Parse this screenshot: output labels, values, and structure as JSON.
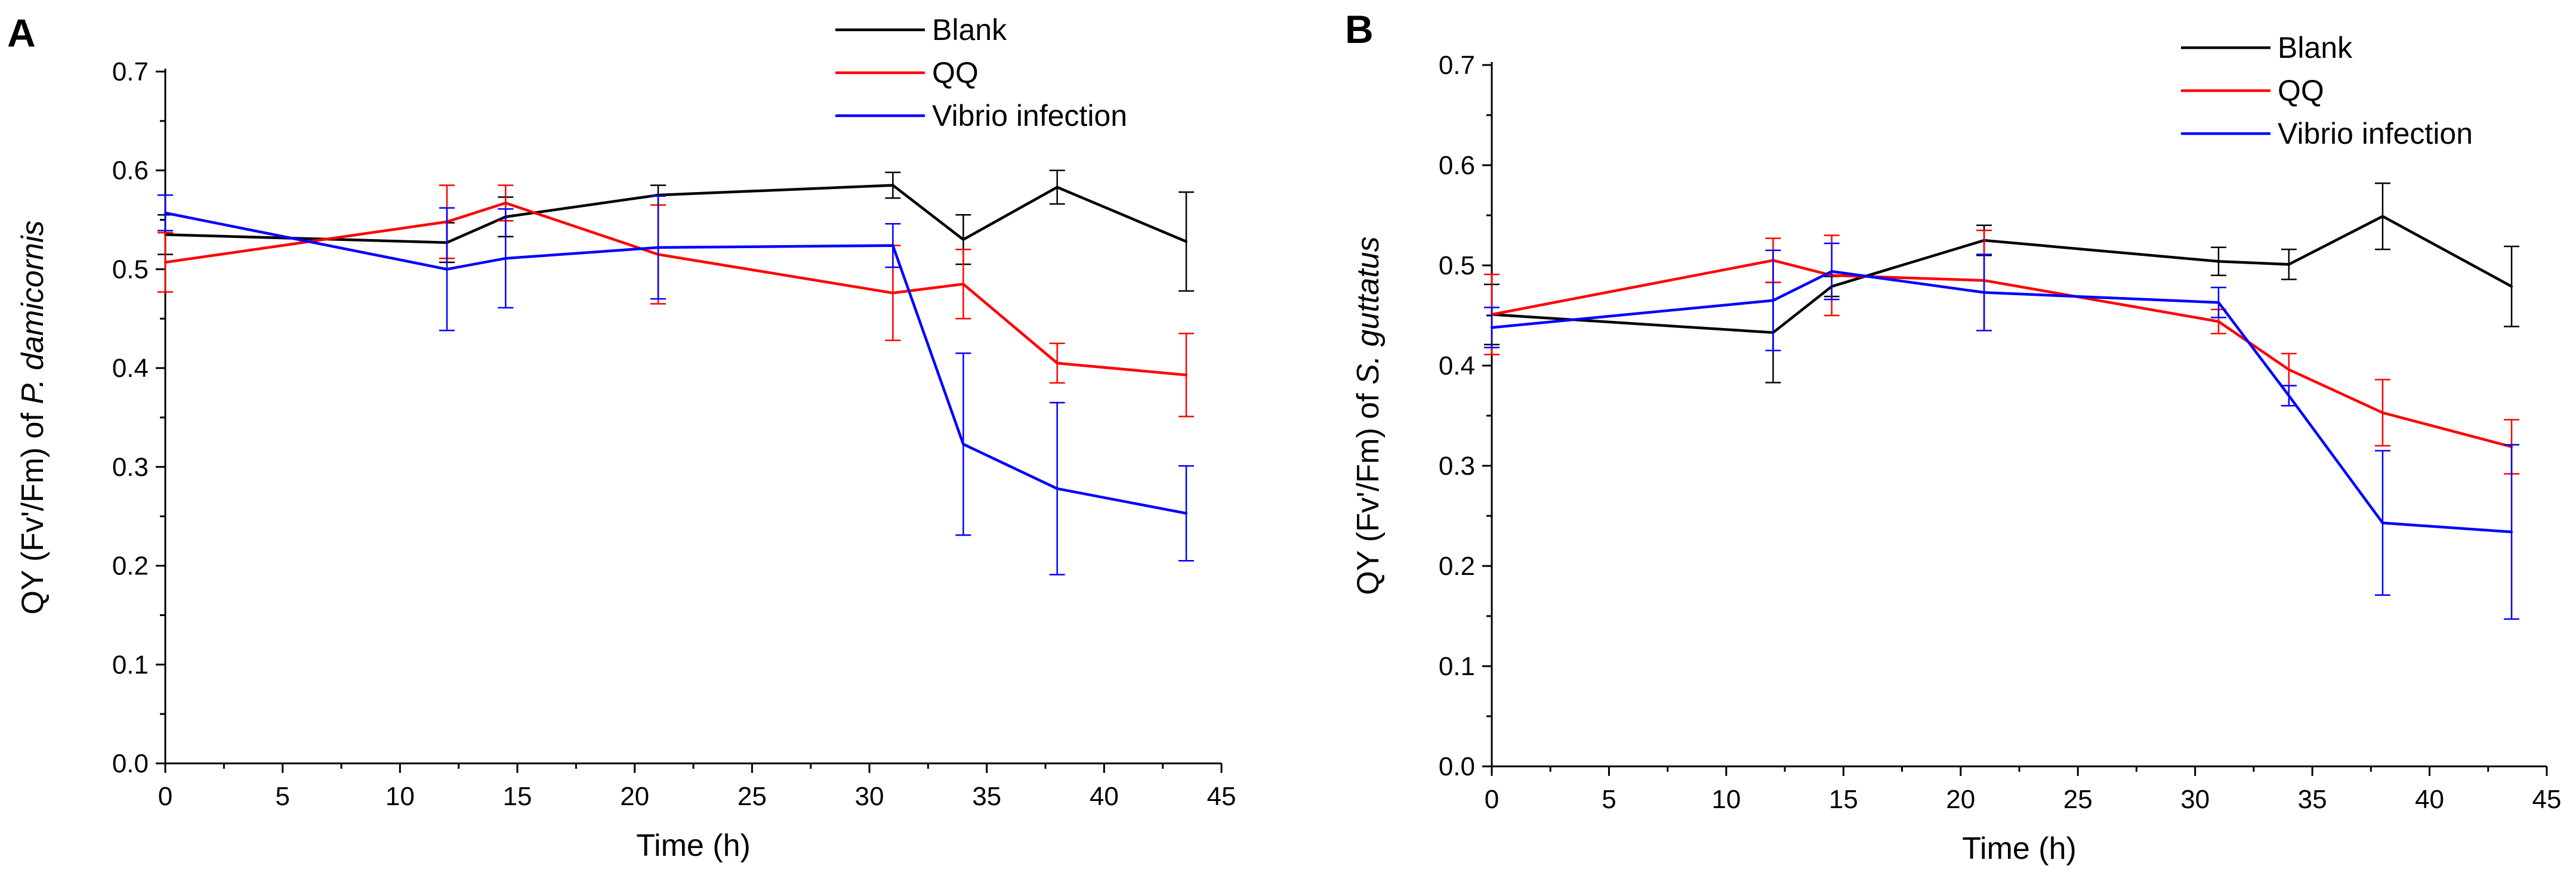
{
  "chart_data": [
    {
      "panel": "A",
      "type": "line",
      "xlabel": "Time (h)",
      "ylabel": {
        "prefix": "QY (Fv'/Fm) of ",
        "species": "P. damicornis"
      },
      "xlim": [
        0,
        45
      ],
      "ylim": [
        0,
        0.7
      ],
      "xticks": [
        0,
        5,
        10,
        15,
        20,
        25,
        30,
        35,
        40,
        45
      ],
      "yticks": [
        "0.0",
        "0.1",
        "0.2",
        "0.3",
        "0.4",
        "0.5",
        "0.6",
        "0.7"
      ],
      "legend_position": "top-right",
      "series": [
        {
          "name": "Blank",
          "color": "#000000",
          "x": [
            0,
            12,
            14.5,
            21,
            31,
            34,
            38,
            43.5
          ],
          "y": [
            0.535,
            0.527,
            0.553,
            0.575,
            0.585,
            0.53,
            0.583,
            0.528
          ],
          "err": [
            0.02,
            0.02,
            0.02,
            0.01,
            0.013,
            0.025,
            0.017,
            0.05
          ]
        },
        {
          "name": "QQ",
          "color": "#ff0000",
          "x": [
            0,
            12,
            14.5,
            21,
            31,
            34,
            38,
            43.5
          ],
          "y": [
            0.507,
            0.548,
            0.567,
            0.515,
            0.476,
            0.485,
            0.405,
            0.393
          ],
          "err": [
            0.03,
            0.037,
            0.018,
            0.05,
            0.048,
            0.035,
            0.02,
            0.042
          ]
        },
        {
          "name": "Vibrio infection",
          "color": "#0000ff",
          "x": [
            0,
            12,
            14.5,
            21,
            31,
            34,
            38,
            43.5
          ],
          "y": [
            0.557,
            0.5,
            0.511,
            0.522,
            0.524,
            0.323,
            0.278,
            0.253
          ],
          "err": [
            0.018,
            0.062,
            0.05,
            0.052,
            0.022,
            0.092,
            0.087,
            0.048
          ]
        }
      ]
    },
    {
      "panel": "B",
      "type": "line",
      "xlabel": "Time (h)",
      "ylabel": {
        "prefix": "QY (Fv'/Fm) of ",
        "species": "S. guttatus"
      },
      "xlim": [
        0,
        45
      ],
      "ylim": [
        0,
        0.7
      ],
      "xticks": [
        0,
        5,
        10,
        15,
        20,
        25,
        30,
        35,
        40,
        45
      ],
      "yticks": [
        "0.0",
        "0.1",
        "0.2",
        "0.3",
        "0.4",
        "0.5",
        "0.6",
        "0.7"
      ],
      "legend_position": "top-right",
      "series": [
        {
          "name": "Blank",
          "color": "#000000",
          "x": [
            0,
            12,
            14.5,
            21,
            31,
            34,
            38,
            43.5
          ],
          "y": [
            0.451,
            0.433,
            0.479,
            0.525,
            0.504,
            0.501,
            0.549,
            0.479
          ],
          "err": [
            0.03,
            0.05,
            0.01,
            0.015,
            0.014,
            0.015,
            0.033,
            0.04
          ]
        },
        {
          "name": "QQ",
          "color": "#ff0000",
          "x": [
            0,
            12,
            14.5,
            21,
            31,
            34,
            38,
            43.5
          ],
          "y": [
            0.451,
            0.505,
            0.49,
            0.485,
            0.444,
            0.396,
            0.353,
            0.319
          ],
          "err": [
            0.04,
            0.022,
            0.04,
            0.05,
            0.012,
            0.016,
            0.033,
            0.027
          ]
        },
        {
          "name": "Vibrio infection",
          "color": "#0000ff",
          "x": [
            0,
            12,
            14.5,
            21,
            31,
            34,
            38,
            43.5
          ],
          "y": [
            0.438,
            0.465,
            0.494,
            0.473,
            0.463,
            0.37,
            0.243,
            0.234
          ],
          "err": [
            0.02,
            0.05,
            0.028,
            0.038,
            0.015,
            0.01,
            0.072,
            0.087
          ]
        }
      ]
    }
  ]
}
